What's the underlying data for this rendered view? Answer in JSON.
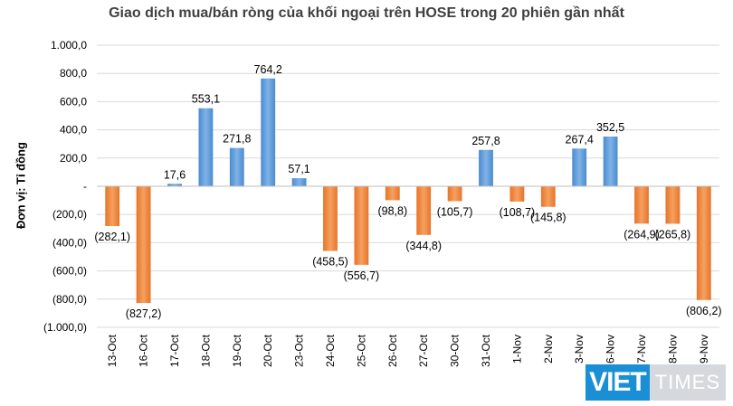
{
  "chart_data": {
    "type": "bar",
    "title": "Giao dịch mua/bán ròng của khối ngoại trên HOSE trong 20 phiên gần nhất",
    "xlabel": "",
    "ylabel": "Đơn vị: Tỉ đồng",
    "ylim": [
      -1000,
      1000
    ],
    "y_ticks": [
      1000,
      800,
      600,
      400,
      200,
      0,
      -200,
      -400,
      -600,
      -800,
      -1000
    ],
    "y_tick_labels": [
      "1.000,0",
      "800,0",
      "600,0",
      "400,0",
      "200,0",
      "-",
      "(200,0)",
      "(400,0)",
      "(600,0)",
      "(800,0)",
      "(1.000,0)"
    ],
    "categories": [
      "13-Oct",
      "16-Oct",
      "17-Oct",
      "18-Oct",
      "19-Oct",
      "20-Oct",
      "23-Oct",
      "24-Oct",
      "25-Oct",
      "26-Oct",
      "27-Oct",
      "30-Oct",
      "31-Oct",
      "1-Nov",
      "2-Nov",
      "3-Nov",
      "6-Nov",
      "7-Nov",
      "8-Nov",
      "9-Nov"
    ],
    "values": [
      -282.1,
      -827.2,
      17.6,
      553.1,
      271.8,
      764.2,
      57.1,
      -458.5,
      -556.7,
      -98.8,
      -344.8,
      -105.7,
      257.8,
      -108.7,
      -145.8,
      267.4,
      352.5,
      -264.9,
      -265.8,
      -806.2
    ],
    "data_labels": [
      "(282,1)",
      "(827,2)",
      "17,6",
      "553,1",
      "271,8",
      "764,2",
      "57,1",
      "(458,5)",
      "(556,7)",
      "(98,8)",
      "(344,8)",
      "(105,7)",
      "257,8",
      "(108,7)",
      "(145,8)",
      "267,4",
      "352,5",
      "(264,9)",
      "(265,8)",
      "(806,2)"
    ],
    "colors": {
      "positive": "#5b9bd5",
      "negative": "#ed7d31",
      "grid": "#d9d9d9"
    },
    "grid": true,
    "legend": "none"
  },
  "watermark": {
    "part1": "VIET",
    "part2": "TIMES"
  }
}
